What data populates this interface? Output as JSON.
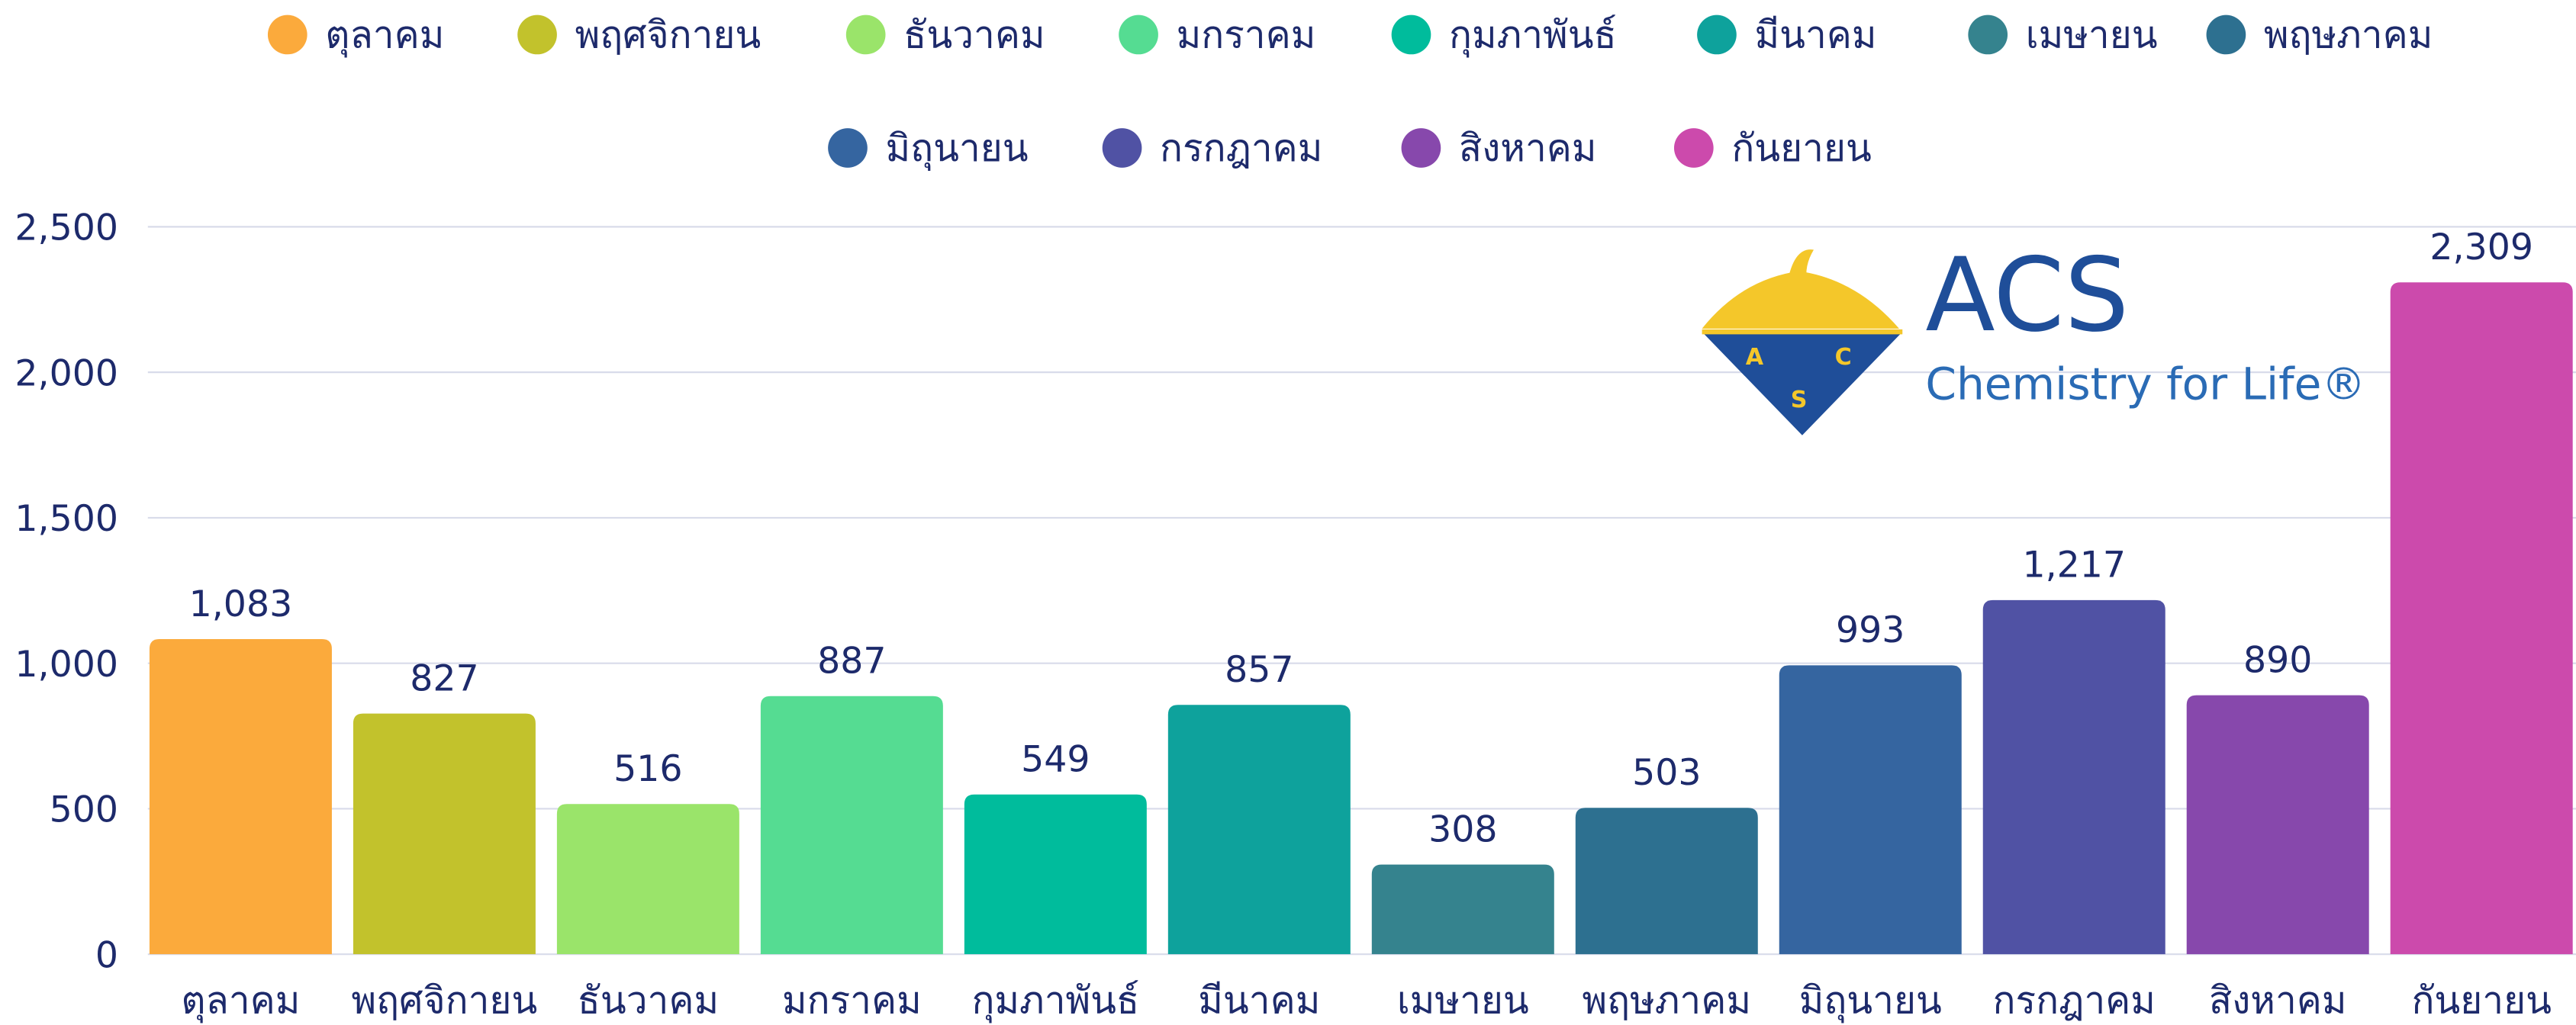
{
  "chart_data": {
    "type": "bar",
    "categories": [
      "ตุลาคม",
      "พฤศจิกายน",
      "ธันวาคม",
      "มกราคม",
      "กุมภาพันธ์",
      "มีนาคม",
      "เมษายน",
      "พฤษภาคม",
      "มิถุนายน",
      "กรกฎาคม",
      "สิงหาคม",
      "กันยายน"
    ],
    "values": [
      1083,
      827,
      516,
      887,
      549,
      857,
      308,
      503,
      993,
      1217,
      890,
      2309
    ],
    "value_labels": [
      "1,083",
      "827",
      "516",
      "887",
      "549",
      "857",
      "308",
      "503",
      "993",
      "1,217",
      "890",
      "2,309"
    ],
    "colors": [
      "#fbaa3c",
      "#c2c22c",
      "#9ae46a",
      "#55dc92",
      "#00bc9c",
      "#0ea29c",
      "#35838e",
      "#2d7090",
      "#3565a0",
      "#5052a4",
      "#8748ac",
      "#cc4aac"
    ],
    "ylim": [
      0,
      2500
    ],
    "yticks": [
      0,
      500,
      {
        "value": 1000,
        "label": "1,000"
      },
      {
        "value": 1500,
        "label": "1,500"
      },
      {
        "value": 2000,
        "label": "2,000"
      },
      {
        "value": 2500,
        "label": "2,500"
      }
    ],
    "grid": true,
    "legend": "top"
  },
  "logo": {
    "name": "ACS",
    "tagline": "Chemistry for Life®",
    "emblem_letters": [
      "A",
      "C",
      "S"
    ]
  }
}
